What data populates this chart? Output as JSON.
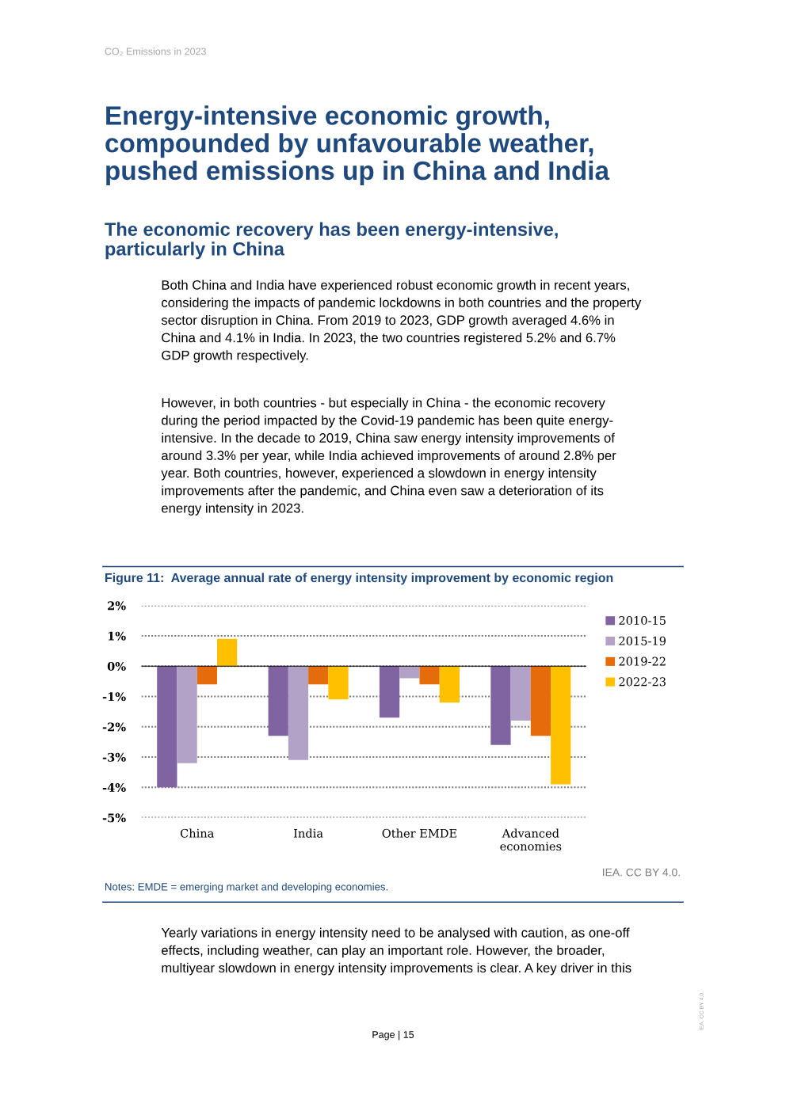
{
  "chart_data": {
    "type": "bar",
    "title": "Figure 11:  Average annual rate of energy intensity improvement by economic region",
    "categories": [
      "China",
      "India",
      "Other EMDE",
      "Advanced economies"
    ],
    "series": [
      {
        "name": "2010-15",
        "color": "#8064a2",
        "values": [
          -4.0,
          -2.3,
          -1.7,
          -2.6
        ]
      },
      {
        "name": "2015-19",
        "color": "#b3a2c7",
        "values": [
          -3.2,
          -3.1,
          -0.4,
          -1.8
        ]
      },
      {
        "name": "2019-22",
        "color": "#e46c0a",
        "values": [
          -0.6,
          -0.6,
          -0.6,
          -2.3
        ]
      },
      {
        "name": "2022-23",
        "color": "#ffc000",
        "values": [
          0.9,
          -1.1,
          -1.2,
          -3.9
        ]
      }
    ],
    "ylim": [
      -5,
      2
    ],
    "yticks": [
      {
        "value": -5,
        "label": "-5%"
      },
      {
        "value": -4,
        "label": "-4%"
      },
      {
        "value": -3,
        "label": "-3%"
      },
      {
        "value": -2,
        "label": "-2%"
      },
      {
        "value": -1,
        "label": "-1%"
      },
      {
        "value": 0,
        "label": "0%"
      },
      {
        "value": 1,
        "label": "1%"
      },
      {
        "value": 2,
        "label": "2%"
      }
    ],
    "grid": "y",
    "legend": "top right",
    "annotations": [
      "CO₂ Emissions in 2023",
      "Energy-intensive economic growth,\ncompounded by unfavourable weather,\npushed emissions up in China and India",
      "The economic recovery has been energy-intensive,\nparticularly in China",
      "Both China and India have experienced robust economic growth in recent years,\nconsidering the impacts of pandemic lockdowns in both countries and the property\nsector disruption in China. From 2019 to 2023, GDP growth averaged 4.6% in\nChina and 4.1% in India. In 2023, the two countries registered 5.2% and 6.7%\nGDP growth respectively.",
      "However, in both countries - but especially in China - the economic recovery\nduring the period impacted by the Covid-19 pandemic has been quite energy-\nintensive. In the decade to 2019, China saw energy intensity improvements of\naround 3.3% per year, while India achieved improvements of around 2.8% per\nyear. Both countries, however, experienced a slowdown in energy intensity\nimprovements after the pandemic, and China even saw a deterioration of its\nenergy intensity in 2023.",
      "IEA. CC BY 4.0.",
      "Notes: EMDE = emerging market and developing economies.",
      "Yearly variations in energy intensity need to be analysed with caution, as one-off\neffects, including weather, can play an important role. However, the broader,\nmultiyear slowdown in energy intensity improvements is clear. A key driver in this",
      "Page | 15",
      "IEA. CC BY 4.0."
    ]
  }
}
